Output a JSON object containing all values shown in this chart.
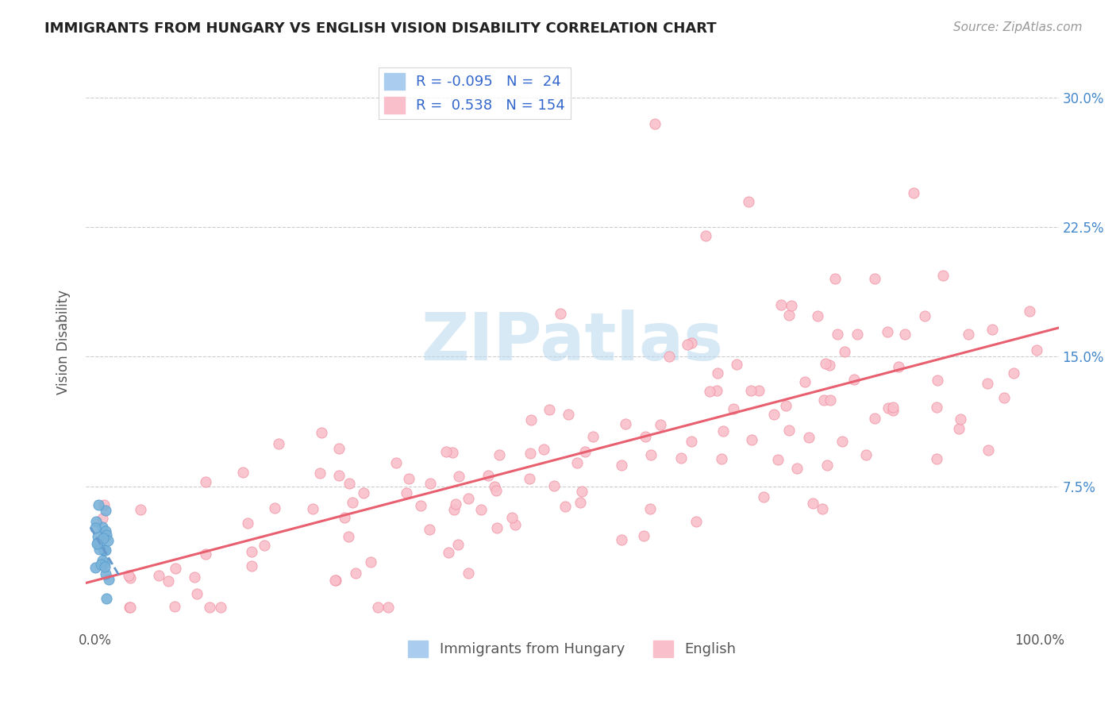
{
  "title": "IMMIGRANTS FROM HUNGARY VS ENGLISH VISION DISABILITY CORRELATION CHART",
  "source": "Source: ZipAtlas.com",
  "ylabel": "Vision Disability",
  "yticks": [
    "7.5%",
    "15.0%",
    "22.5%",
    "30.0%"
  ],
  "ytick_values": [
    0.075,
    0.15,
    0.225,
    0.3
  ],
  "ymax": 0.325,
  "ymin": -0.008,
  "xmax": 1.02,
  "xmin": -0.01,
  "blue_marker_color": "#7ab3d9",
  "blue_marker_edge": "#5599cc",
  "pink_marker_color": "#f9c0cb",
  "pink_marker_edge": "#f090a0",
  "blue_line_color": "#6699cc",
  "pink_line_color": "#e86070",
  "R_blue": -0.095,
  "N_blue": 24,
  "R_pink": 0.538,
  "N_pink": 154,
  "legend_label_blue": "Immigrants from Hungary",
  "legend_label_pink": "English",
  "watermark": "ZIPatlas",
  "title_fontsize": 13,
  "source_fontsize": 11,
  "tick_fontsize": 12,
  "ylabel_fontsize": 12
}
